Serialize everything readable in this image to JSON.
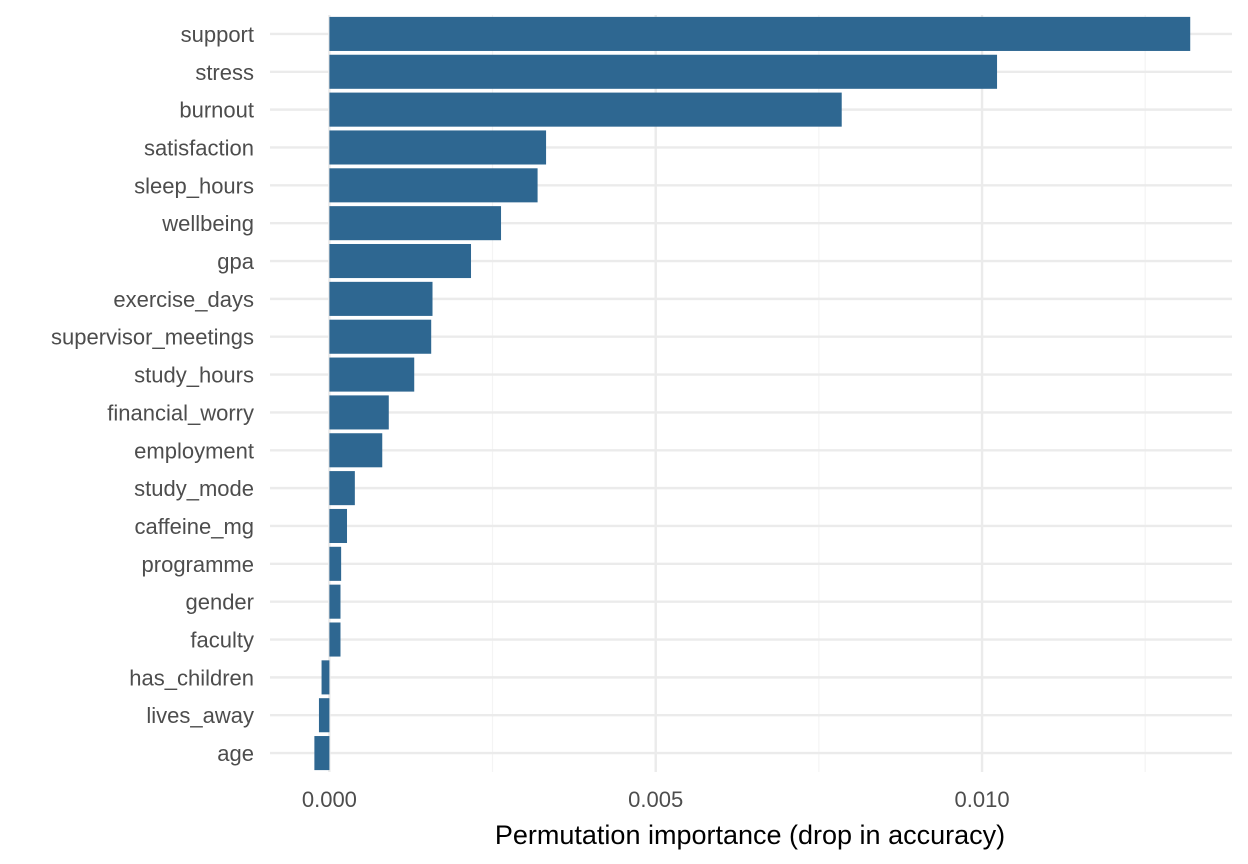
{
  "chart_data": {
    "type": "bar",
    "orientation": "horizontal",
    "title": "",
    "xlabel": "Permutation importance (drop in accuracy)",
    "ylabel": "",
    "categories": [
      "support",
      "stress",
      "burnout",
      "satisfaction",
      "sleep_hours",
      "wellbeing",
      "gpa",
      "exercise_days",
      "supervisor_meetings",
      "study_hours",
      "financial_worry",
      "employment",
      "study_mode",
      "caffeine_mg",
      "programme",
      "gender",
      "faculty",
      "has_children",
      "lives_away",
      "age"
    ],
    "values": [
      0.01319,
      0.01023,
      0.00785,
      0.00332,
      0.00319,
      0.00263,
      0.00217,
      0.00158,
      0.00156,
      0.0013,
      0.00091,
      0.00081,
      0.00039,
      0.00027,
      0.00018,
      0.00017,
      0.00017,
      -0.00012,
      -0.00016,
      -0.00023
    ],
    "xlim": [
      -0.00091,
      0.01383
    ],
    "x_ticks": [
      0.0,
      0.005,
      0.01
    ],
    "x_tick_labels": [
      "0.000",
      "0.005",
      "0.010"
    ],
    "grid": true,
    "colors": {
      "bar": "#2e6791",
      "grid_major": "#ebebeb",
      "grid_minor": "#f4f4f4"
    }
  }
}
